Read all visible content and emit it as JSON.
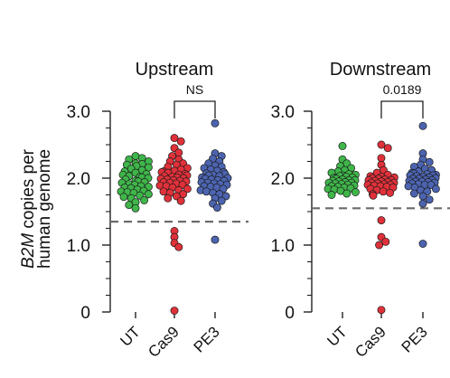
{
  "figure": {
    "ylabel_line1_italic": "B2M",
    "ylabel_line1_rest": " copies per",
    "ylabel_line2": "human genome"
  },
  "colors": {
    "UT": "#3fb54a",
    "Cas9": "#e0313a",
    "PE3": "#4c64b0",
    "axis": "#222222",
    "threshold": "#6b6b6b",
    "point_edge": "#1a1a1a"
  },
  "chart_data": [
    {
      "type": "scatter",
      "style": "dot-strip",
      "title": "Upstream",
      "categories": [
        "UT",
        "Cas9",
        "PE3"
      ],
      "ylim": [
        0,
        3.0
      ],
      "yticks": [
        0,
        1.0,
        2.0,
        3.0
      ],
      "yticklabels": [
        "0",
        "1.0",
        "2.0",
        "3.0"
      ],
      "threshold": 1.35,
      "significance": {
        "between": [
          "Cas9",
          "PE3"
        ],
        "label": "NS"
      },
      "series": [
        {
          "values": [
            2.33,
            2.3,
            2.28,
            2.25,
            2.22,
            2.2,
            2.18,
            2.16,
            2.14,
            2.12,
            2.1,
            2.08,
            2.06,
            2.05,
            2.03,
            2.01,
            2.0,
            1.98,
            1.96,
            1.95,
            1.93,
            1.91,
            1.9,
            1.88,
            1.86,
            1.85,
            1.83,
            1.81,
            1.8,
            1.78,
            1.76,
            1.74,
            1.72,
            1.7,
            1.67,
            1.64,
            1.6,
            1.55,
            2.21,
            2.02,
            1.94,
            1.87,
            1.79
          ]
        },
        {
          "values": [
            2.6,
            2.55,
            2.45,
            2.38,
            2.33,
            2.28,
            2.25,
            2.22,
            2.2,
            2.17,
            2.15,
            2.13,
            2.11,
            2.09,
            2.08,
            2.06,
            2.05,
            2.04,
            2.02,
            2.01,
            2.0,
            1.99,
            1.97,
            1.96,
            1.95,
            1.93,
            1.92,
            1.9,
            1.88,
            1.86,
            1.84,
            1.82,
            1.8,
            1.78,
            1.76,
            1.73,
            1.7,
            1.66,
            2.1,
            2.03,
            1.98,
            1.94,
            1.89,
            1.21,
            1.12,
            1.03,
            0.97,
            0.02
          ]
        },
        {
          "values": [
            2.82,
            2.37,
            2.33,
            2.29,
            2.25,
            2.22,
            2.19,
            2.17,
            2.15,
            2.13,
            2.11,
            2.09,
            2.07,
            2.06,
            2.04,
            2.03,
            2.01,
            2.0,
            1.99,
            1.97,
            1.96,
            1.94,
            1.93,
            1.91,
            1.9,
            1.88,
            1.86,
            1.84,
            1.82,
            1.8,
            1.78,
            1.76,
            1.73,
            1.7,
            1.66,
            1.62,
            1.56,
            2.05,
            1.98,
            1.92,
            1.87,
            1.08
          ]
        }
      ]
    },
    {
      "type": "scatter",
      "style": "dot-strip",
      "title": "Downstream",
      "categories": [
        "UT",
        "Cas9",
        "PE3"
      ],
      "ylim": [
        0,
        3.0
      ],
      "yticks": [
        0,
        1.0,
        2.0,
        3.0
      ],
      "yticklabels": [
        "0",
        "1.0",
        "2.0",
        "3.0"
      ],
      "threshold": 1.55,
      "significance": {
        "between": [
          "Cas9",
          "PE3"
        ],
        "label": "0.0189"
      },
      "series": [
        {
          "values": [
            2.48,
            2.28,
            2.22,
            2.18,
            2.15,
            2.12,
            2.1,
            2.08,
            2.06,
            2.05,
            2.03,
            2.02,
            2.01,
            2.0,
            1.99,
            1.98,
            1.97,
            1.96,
            1.95,
            1.94,
            1.93,
            1.92,
            1.91,
            1.9,
            1.89,
            1.88,
            1.87,
            1.86,
            1.84,
            1.83,
            1.81,
            1.79,
            1.77,
            1.75,
            2.04,
            1.97,
            1.93,
            1.85
          ]
        },
        {
          "values": [
            2.5,
            2.45,
            2.3,
            2.2,
            2.12,
            2.08,
            2.05,
            2.03,
            2.01,
            2.0,
            1.99,
            1.98,
            1.97,
            1.96,
            1.95,
            1.94,
            1.93,
            1.92,
            1.91,
            1.9,
            1.89,
            1.88,
            1.87,
            1.86,
            1.84,
            1.82,
            1.8,
            1.78,
            1.76,
            1.74,
            2.02,
            1.97,
            1.93,
            1.9,
            1.37,
            1.12,
            1.05,
            1.0,
            0.03
          ]
        },
        {
          "values": [
            2.78,
            2.37,
            2.28,
            2.24,
            2.2,
            2.17,
            2.14,
            2.12,
            2.1,
            2.08,
            2.07,
            2.06,
            2.05,
            2.04,
            2.03,
            2.02,
            2.01,
            2.0,
            1.99,
            1.98,
            1.97,
            1.96,
            1.95,
            1.94,
            1.93,
            1.92,
            1.91,
            1.9,
            1.88,
            1.86,
            1.84,
            1.82,
            1.8,
            1.77,
            1.73,
            1.68,
            1.62,
            2.04,
            1.99,
            1.95,
            1.9,
            1.02
          ]
        }
      ]
    }
  ]
}
